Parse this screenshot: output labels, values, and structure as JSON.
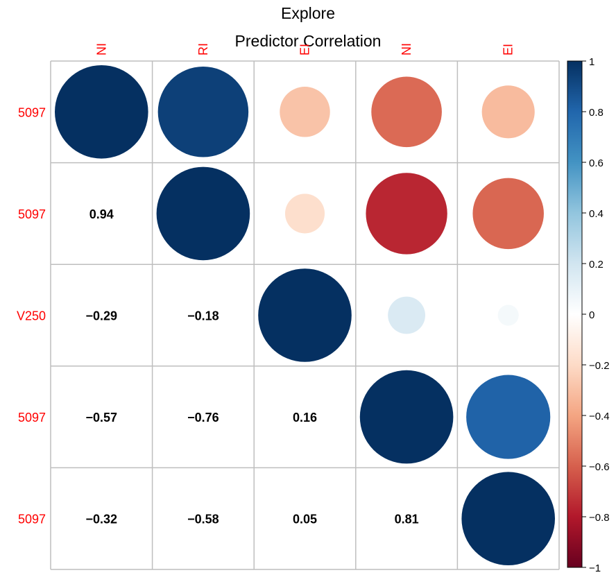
{
  "chart_data": {
    "type": "heatmap",
    "style": "corrplot-mixed (circles upper, numbers lower)",
    "title_lines": [
      "Explore",
      "Predictor Correlation"
    ],
    "row_labels": [
      "5097",
      "5097",
      "V250",
      "5097",
      "5097"
    ],
    "column_labels": [
      "NI",
      "RI",
      "EI",
      "NI",
      "EI"
    ],
    "matrix": [
      [
        1.0,
        0.94,
        -0.29,
        -0.57,
        -0.32
      ],
      [
        0.94,
        1.0,
        -0.18,
        -0.76,
        -0.58
      ],
      [
        -0.29,
        -0.18,
        1.0,
        0.16,
        0.05
      ],
      [
        -0.57,
        -0.76,
        0.16,
        1.0,
        0.81
      ],
      [
        -0.32,
        -0.58,
        0.05,
        0.81,
        1.0
      ]
    ],
    "lower_labels": [
      [
        "",
        "",
        "",
        "",
        ""
      ],
      [
        "0.94",
        "",
        "",
        "",
        ""
      ],
      [
        "−0.29",
        "−0.18",
        "",
        "",
        ""
      ],
      [
        "−0.57",
        "−0.76",
        "0.16",
        "",
        ""
      ],
      [
        "−0.32",
        "−0.58",
        "0.05",
        "0.81",
        ""
      ]
    ],
    "colorbar": {
      "range": [
        -1,
        1
      ],
      "ticks": [
        "1",
        "0.8",
        "0.6",
        "0.4",
        "0.2",
        "0",
        "−0.2",
        "−0.4",
        "−0.6",
        "−0.8",
        "−1"
      ],
      "tick_values": [
        1,
        0.8,
        0.6,
        0.4,
        0.2,
        0,
        -0.2,
        -0.4,
        -0.6,
        -0.8,
        -1
      ],
      "colors": [
        "#67001F",
        "#B2182B",
        "#D6604D",
        "#F4A582",
        "#FDDBC7",
        "#FFFFFF",
        "#D1E5F0",
        "#92C5DE",
        "#4393C3",
        "#2166AC",
        "#053061"
      ]
    },
    "grid": true,
    "label_color": "#FF0000"
  }
}
